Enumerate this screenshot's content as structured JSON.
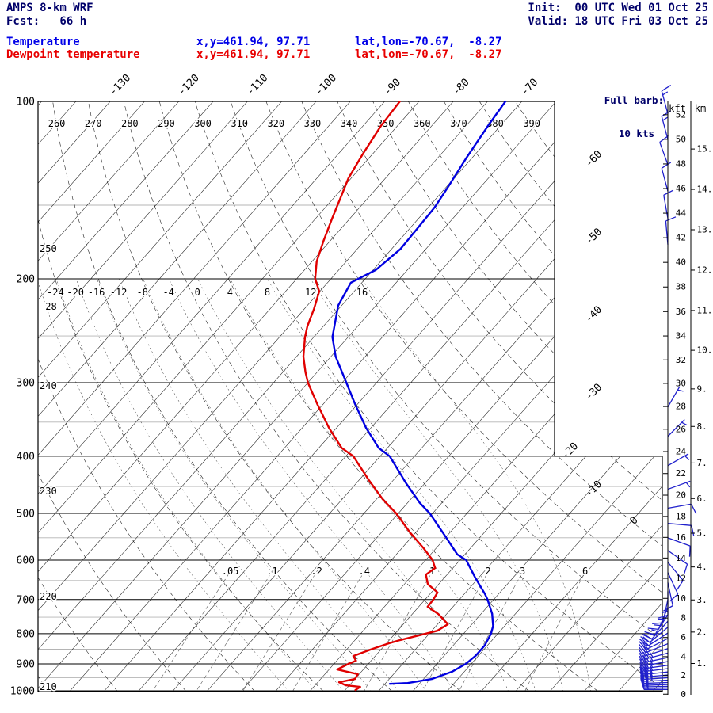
{
  "header": {
    "model": "AMPS 8-km WRF",
    "fcst": "Fcst:   66 h",
    "init": "Init:  00 UTC Wed 01 Oct 25",
    "valid": "Valid: 18 UTC Fri 03 Oct 25",
    "temp_label": "Temperature",
    "temp_xy": "x,y=461.94, 97.71",
    "temp_latlon": "lat,lon=-70.67,  -8.27",
    "dew_label": "Dewpoint temperature",
    "dew_xy": "x,y=461.94, 97.71",
    "dew_latlon": "lat,lon=-70.67,  -8.27",
    "barb_legend_1": "Full barb:",
    "barb_legend_2": "10 kts"
  },
  "colors": {
    "navy": "#00006a",
    "temperature": "#0000e0",
    "dewpoint": "#e00000",
    "barb": "#2020cc",
    "grid_minor": "#b4b4b4"
  },
  "chart_data": {
    "type": "skewt_log_p",
    "pressure_range_hpa": [
      100,
      1000
    ],
    "pressure_ticks": [
      100,
      200,
      300,
      400,
      500,
      600,
      700,
      800,
      900,
      1000
    ],
    "pressure_minor": [
      150,
      250,
      350,
      450,
      550,
      650,
      750,
      850,
      950
    ],
    "isotherm_interval_c": 5,
    "isotherm_range_c": [
      -160,
      45
    ],
    "isotherm_labels_top": [
      -130,
      -120,
      -110,
      -100,
      -90,
      -80,
      -70
    ],
    "isotherm_labels_right": [
      -60,
      -50,
      -40,
      -30,
      -20,
      -10,
      0
    ],
    "dry_adiabat_labels_top": [
      260,
      270,
      280,
      290,
      300,
      310,
      320,
      330,
      340,
      350,
      360,
      370,
      380,
      390
    ],
    "dry_adiabat_labels_left": [
      210,
      220,
      230,
      240,
      250
    ],
    "moist_adiabat_labels": [
      -28,
      -24,
      -20,
      -16,
      -12,
      -8,
      -4,
      0,
      4,
      8,
      12,
      16
    ],
    "mixing_ratio_labels": [
      ".05",
      ".1",
      ".2",
      ".4",
      "1",
      "2",
      "3",
      "6"
    ],
    "mixing_ratio_values": [
      0.05,
      0.1,
      0.2,
      0.4,
      1,
      2,
      3,
      6
    ],
    "height_axis": {
      "kft_header": "kft",
      "km_header": "km",
      "kft_ticks": [
        0,
        2,
        4,
        6,
        8,
        10,
        12,
        14,
        16,
        18,
        20,
        22,
        24,
        26,
        28,
        30,
        32,
        34,
        36,
        38,
        40,
        42,
        44,
        46,
        48,
        50,
        52
      ],
      "km_ticks": [
        1,
        2,
        3,
        4,
        5,
        6,
        7,
        8,
        9,
        10,
        11,
        12,
        13,
        14,
        15
      ]
    },
    "temperature_profile_pT": [
      [
        100,
        -72.4
      ],
      [
        110,
        -71.8
      ],
      [
        125,
        -70.8
      ],
      [
        139,
        -69.8
      ],
      [
        151,
        -69.1
      ],
      [
        163,
        -68.9
      ],
      [
        178,
        -68.7
      ],
      [
        193,
        -69.6
      ],
      [
        203,
        -71.6
      ],
      [
        222,
        -70.5
      ],
      [
        251,
        -67.3
      ],
      [
        271,
        -64.3
      ],
      [
        300,
        -59.4
      ],
      [
        326,
        -55.4
      ],
      [
        358,
        -50.7
      ],
      [
        387,
        -46.3
      ],
      [
        400,
        -43.6
      ],
      [
        444,
        -37.8
      ],
      [
        480,
        -33.2
      ],
      [
        500,
        -30.4
      ],
      [
        543,
        -25.6
      ],
      [
        587,
        -21.1
      ],
      [
        600,
        -19.1
      ],
      [
        644,
        -15.4
      ],
      [
        685,
        -12.0
      ],
      [
        700,
        -10.9
      ],
      [
        740,
        -8.4
      ],
      [
        776,
        -6.7
      ],
      [
        800,
        -6.0
      ],
      [
        838,
        -5.4
      ],
      [
        872,
        -5.4
      ],
      [
        900,
        -5.8
      ],
      [
        928,
        -6.8
      ],
      [
        955,
        -8.8
      ],
      [
        970,
        -11.8
      ],
      [
        973,
        -14.3
      ]
    ],
    "dewpoint_profile_pT": [
      [
        100,
        -87.8
      ],
      [
        110,
        -87.4
      ],
      [
        123,
        -86.4
      ],
      [
        135,
        -85.4
      ],
      [
        146,
        -84.0
      ],
      [
        158,
        -82.6
      ],
      [
        173,
        -80.9
      ],
      [
        187,
        -79.3
      ],
      [
        200,
        -77.3
      ],
      [
        210,
        -75.1
      ],
      [
        225,
        -73.6
      ],
      [
        241,
        -72.3
      ],
      [
        251,
        -71.3
      ],
      [
        271,
        -69.0
      ],
      [
        288,
        -66.7
      ],
      [
        300,
        -65.0
      ],
      [
        326,
        -60.9
      ],
      [
        358,
        -56.1
      ],
      [
        387,
        -51.7
      ],
      [
        400,
        -48.9
      ],
      [
        438,
        -43.7
      ],
      [
        473,
        -39.1
      ],
      [
        500,
        -35.3
      ],
      [
        539,
        -30.8
      ],
      [
        573,
        -26.8
      ],
      [
        600,
        -24.0
      ],
      [
        619,
        -22.6
      ],
      [
        635,
        -23.1
      ],
      [
        659,
        -21.6
      ],
      [
        681,
        -19.1
      ],
      [
        700,
        -18.8
      ],
      [
        720,
        -18.7
      ],
      [
        741,
        -16.2
      ],
      [
        771,
        -13.5
      ],
      [
        791,
        -14.2
      ],
      [
        820,
        -18.4
      ],
      [
        831,
        -19.7
      ],
      [
        851,
        -21.5
      ],
      [
        873,
        -23.2
      ],
      [
        889,
        -22.2
      ],
      [
        900,
        -22.9
      ],
      [
        920,
        -23.8
      ],
      [
        937,
        -20.2
      ],
      [
        955,
        -20.0
      ],
      [
        967,
        -21.9
      ],
      [
        979,
        -20.5
      ],
      [
        985,
        -18.2
      ],
      [
        997,
        -18.5
      ]
    ],
    "wind_barbs_p_dir_spd": [
      [
        105,
        345,
        15
      ],
      [
        116,
        345,
        15
      ],
      [
        128,
        340,
        10
      ],
      [
        142,
        345,
        10
      ],
      [
        158,
        350,
        10
      ],
      [
        175,
        355,
        10
      ],
      [
        330,
        30,
        5
      ],
      [
        370,
        45,
        5
      ],
      [
        415,
        60,
        5
      ],
      [
        455,
        70,
        5
      ],
      [
        490,
        80,
        10
      ],
      [
        520,
        95,
        10
      ],
      [
        550,
        110,
        10
      ],
      [
        578,
        125,
        10
      ],
      [
        605,
        140,
        10
      ],
      [
        630,
        155,
        10
      ],
      [
        655,
        168,
        10
      ],
      [
        678,
        180,
        15
      ],
      [
        700,
        192,
        15
      ],
      [
        722,
        203,
        15
      ],
      [
        743,
        213,
        15
      ],
      [
        762,
        222,
        15
      ],
      [
        780,
        230,
        20
      ],
      [
        798,
        237,
        20
      ],
      [
        815,
        243,
        20
      ],
      [
        832,
        248,
        20
      ],
      [
        848,
        252,
        20
      ],
      [
        863,
        255,
        25
      ],
      [
        878,
        258,
        25
      ],
      [
        892,
        260,
        25
      ],
      [
        905,
        262,
        25
      ],
      [
        917,
        263,
        25
      ],
      [
        929,
        264,
        25
      ],
      [
        940,
        265,
        25
      ],
      [
        950,
        266,
        25
      ],
      [
        959,
        267,
        25
      ],
      [
        968,
        268,
        20
      ],
      [
        976,
        268,
        20
      ],
      [
        983,
        269,
        15
      ],
      [
        989,
        269,
        15
      ],
      [
        995,
        270,
        15
      ]
    ]
  }
}
